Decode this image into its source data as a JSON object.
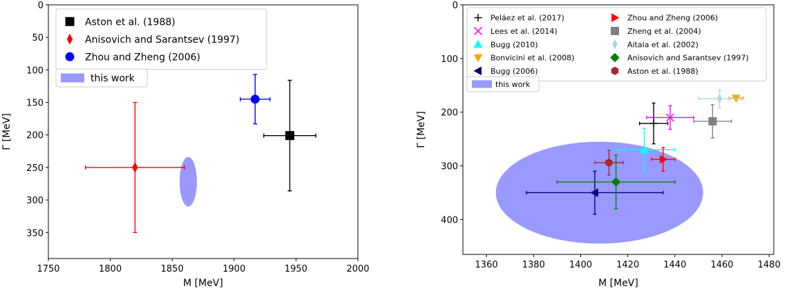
{
  "chart_data": [
    {
      "type": "scatter",
      "xlabel": "M [MeV]",
      "ylabel": "Γ [MeV]",
      "xlim": [
        1750,
        2000
      ],
      "ylim": [
        0,
        390
      ],
      "y_inverted": true,
      "x_ticks": [
        1750,
        1800,
        1850,
        1900,
        1950,
        2000
      ],
      "y_ticks": [
        0,
        50,
        100,
        150,
        200,
        250,
        300,
        350
      ],
      "legend_position": "top-left",
      "series": [
        {
          "name": "Aston et al. (1988)",
          "marker": "square",
          "color": "#000000",
          "x": 1945,
          "y": 201,
          "x_err": [
            21,
            21
          ],
          "y_err": [
            85,
            85
          ]
        },
        {
          "name": "Anisovich and Sarantsev (1997)",
          "marker": "thin-diamond",
          "color": "#ff0000",
          "x": 1820,
          "y": 250,
          "x_err": [
            40,
            40
          ],
          "y_err": [
            100,
            100
          ]
        },
        {
          "name": "Zhou and Zheng (2006)",
          "marker": "circle",
          "color": "#0000ff",
          "x": 1917,
          "y": 145,
          "x_err": [
            12,
            12
          ],
          "y_err": [
            38,
            38
          ]
        }
      ],
      "this_work": {
        "name": "this work",
        "color": "#9999ff",
        "center": [
          1863,
          272
        ],
        "half_width": 7,
        "half_height": 38
      }
    },
    {
      "type": "scatter",
      "xlabel": "M [MeV]",
      "ylabel": "Γ [MeV]",
      "xlim": [
        1350,
        1482
      ],
      "ylim": [
        0,
        465
      ],
      "y_inverted": true,
      "x_ticks": [
        1360,
        1380,
        1400,
        1420,
        1440,
        1460,
        1480
      ],
      "y_ticks": [
        0,
        100,
        200,
        300,
        400
      ],
      "legend_position": "top-left",
      "legend_columns": 2,
      "series": [
        {
          "name": "Peláez et al. (2017)",
          "marker": "plus",
          "color": "#000000",
          "x": 1431,
          "y": 221,
          "x_err": [
            6,
            6
          ],
          "y_err": [
            38,
            38
          ]
        },
        {
          "name": "Lees et al. (2014)",
          "marker": "x",
          "color": "#ff00ff",
          "x": 1438,
          "y": 210,
          "x_err": [
            10,
            10
          ],
          "y_err": [
            22,
            22
          ]
        },
        {
          "name": "Bugg (2010)",
          "marker": "triangle-up",
          "color": "#00ffff",
          "x": 1427,
          "y": 270,
          "x_err": [
            13,
            13
          ],
          "y_err": [
            40,
            40
          ]
        },
        {
          "name": "Bonvicini et al. (2008)",
          "marker": "triangle-down",
          "color": "#ffa500",
          "x": 1466,
          "y": 174,
          "x_err": [
            3,
            3
          ],
          "y_err": [
            4,
            4
          ]
        },
        {
          "name": "Bugg (2006)",
          "marker": "triangle-left",
          "color": "#000080",
          "x": 1406,
          "y": 350,
          "x_err": [
            29,
            29
          ],
          "y_err": [
            40,
            40
          ]
        },
        {
          "name": "Zhou and Zheng (2006)",
          "marker": "triangle-right",
          "color": "#ff0000",
          "x": 1435,
          "y": 288,
          "x_err": [
            5,
            5
          ],
          "y_err": [
            22,
            22
          ]
        },
        {
          "name": "Zheng et al. (2004)",
          "marker": "square",
          "color": "#808080",
          "x": 1456,
          "y": 217,
          "x_err": [
            8,
            8
          ],
          "y_err": [
            31,
            31
          ]
        },
        {
          "name": "Aitala et al. (2002)",
          "marker": "thin-diamond",
          "color": "#add8e6",
          "x": 1459,
          "y": 175,
          "x_err": [
            9,
            9
          ],
          "y_err": [
            17,
            17
          ]
        },
        {
          "name": "Anisovich and Sarantsev (1997)",
          "marker": "diamond",
          "color": "#008000",
          "x": 1415,
          "y": 330,
          "x_err": [
            25,
            25
          ],
          "y_err": [
            50,
            50
          ]
        },
        {
          "name": "Aston et al. (1988)",
          "marker": "hexagon",
          "color": "#a52a2a",
          "x": 1412,
          "y": 294,
          "x_err": [
            6,
            6
          ],
          "y_err": [
            23,
            23
          ]
        }
      ],
      "this_work": {
        "name": "this work",
        "color": "#9999ff",
        "center": [
          1408,
          350
        ],
        "half_width": 44,
        "half_height": 95
      }
    }
  ]
}
